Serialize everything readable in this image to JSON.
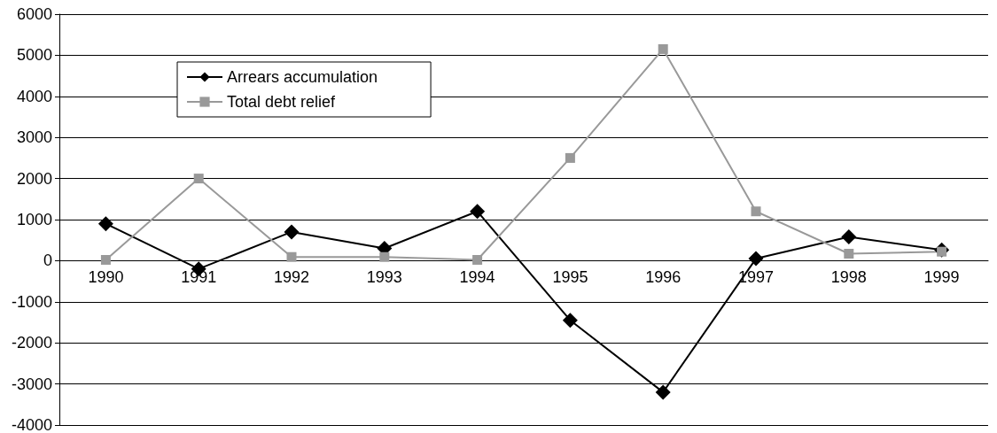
{
  "chart_data": {
    "type": "line",
    "categories": [
      "1990",
      "1991",
      "1992",
      "1993",
      "1994",
      "1995",
      "1996",
      "1997",
      "1998",
      "1999"
    ],
    "series": [
      {
        "name": "Arrears accumulation",
        "color": "#000000",
        "marker": "diamond",
        "values": [
          900,
          -200,
          700,
          300,
          1200,
          -1450,
          -3200,
          50,
          580,
          260
        ]
      },
      {
        "name": "Total debt relief",
        "color": "#999999",
        "marker": "square",
        "values": [
          20,
          2000,
          90,
          90,
          20,
          2500,
          5150,
          1200,
          170,
          220
        ]
      }
    ],
    "ylim": [
      -4000,
      6000
    ],
    "yticks": [
      -4000,
      -3000,
      -2000,
      -1000,
      0,
      1000,
      2000,
      3000,
      4000,
      5000,
      6000
    ],
    "grid": "y",
    "legend": "top left"
  }
}
